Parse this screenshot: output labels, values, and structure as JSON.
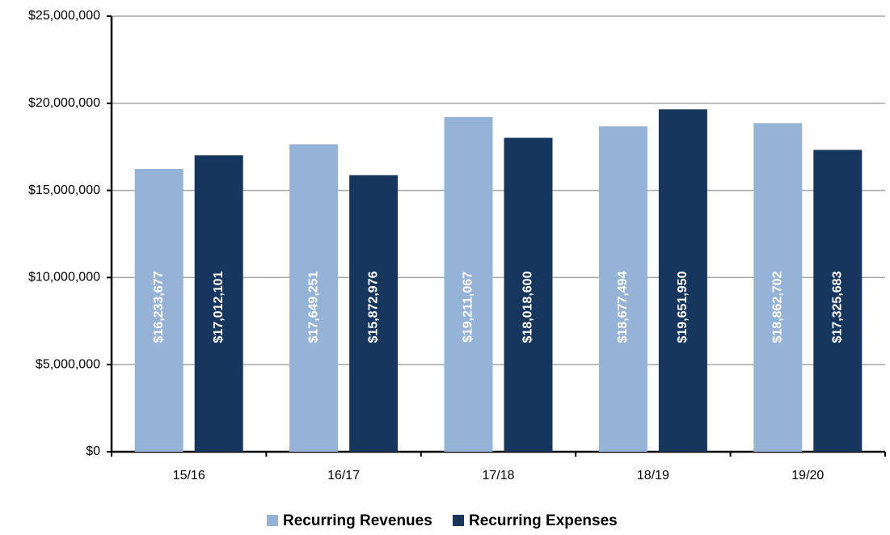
{
  "chart_data": {
    "type": "bar",
    "categories": [
      "15/16",
      "16/17",
      "17/18",
      "18/19",
      "19/20"
    ],
    "series": [
      {
        "name": "Recurring Revenues",
        "color": "#95b3d7",
        "values": [
          16233677,
          17649251,
          19211067,
          18677494,
          18862702
        ],
        "value_labels": [
          "$16,233,677",
          "$17,649,251",
          "$19,211,067",
          "$18,677,494",
          "$18,862,702"
        ]
      },
      {
        "name": "Recurring Expenses",
        "color": "#17365d",
        "values": [
          17012101,
          15872976,
          18018600,
          19651950,
          17325683
        ],
        "value_labels": [
          "$17,012,101",
          "$15,872,976",
          "$18,018,600",
          "$19,651,950",
          "$17,325,683"
        ]
      }
    ],
    "ylim": [
      0,
      25000000
    ],
    "yticks": [
      {
        "value": 0,
        "label": "$0"
      },
      {
        "value": 5000000,
        "label": "$5,000,000"
      },
      {
        "value": 10000000,
        "label": "$10,000,000"
      },
      {
        "value": 15000000,
        "label": "$15,000,000"
      },
      {
        "value": 20000000,
        "label": "$20,000,000"
      },
      {
        "value": 25000000,
        "label": "$25,000,000"
      }
    ],
    "grid": true,
    "legend": "bottom"
  }
}
